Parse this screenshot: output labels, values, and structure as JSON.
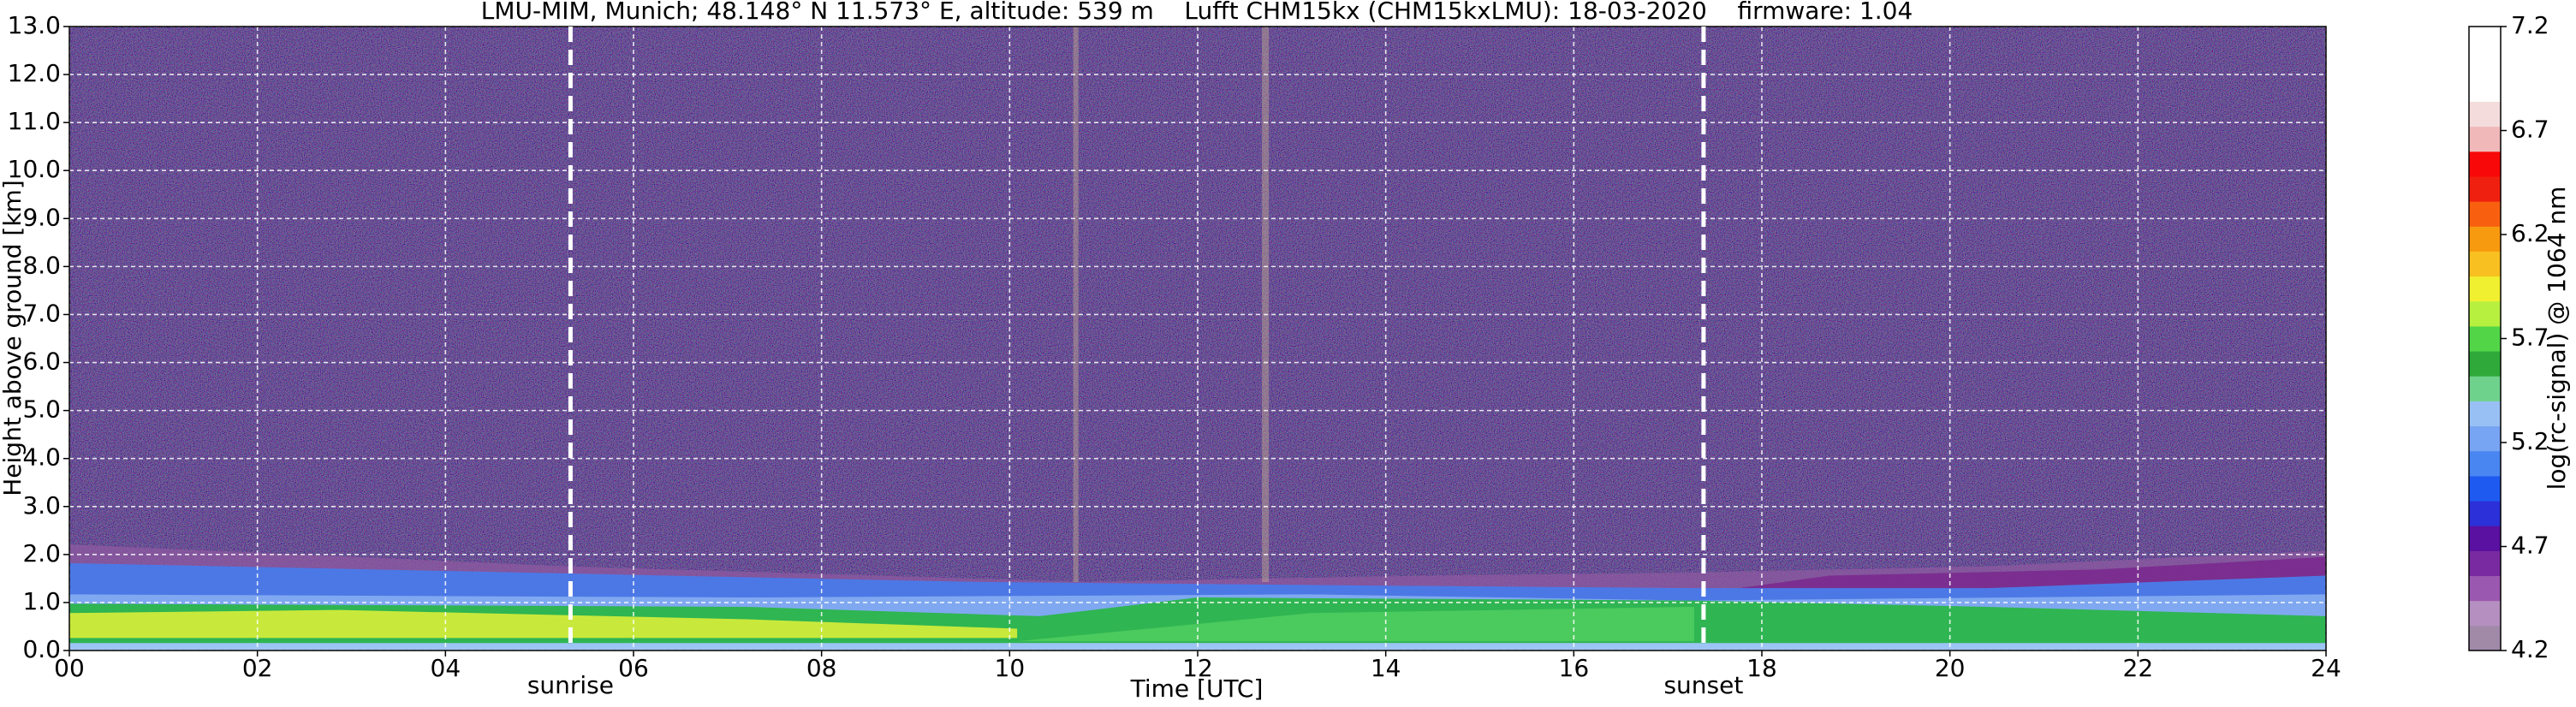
{
  "chart_data": {
    "type": "heatmap",
    "title": "LMU-MIM, Munich; 48.148° N 11.573° E, altitude: 539 m    Lufft CHM15kx (CHM15kxLMU): 18-03-2020    firmware: 1.04",
    "xlabel": "Time [UTC]",
    "ylabel": "Height above ground [km]",
    "xlim": [
      0,
      24
    ],
    "xticks": [
      {
        "value": 0,
        "label": "00"
      },
      {
        "value": 2,
        "label": "02"
      },
      {
        "value": 4,
        "label": "04"
      },
      {
        "value": 6,
        "label": "06"
      },
      {
        "value": 8,
        "label": "08"
      },
      10,
      12,
      14,
      16,
      18,
      20,
      22,
      24
    ],
    "ylim": [
      0,
      13
    ],
    "yticks": [
      {
        "value": 0,
        "label": "0.0"
      },
      {
        "value": 1,
        "label": "1.0"
      },
      {
        "value": 2,
        "label": "2.0"
      },
      {
        "value": 3,
        "label": "3.0"
      },
      {
        "value": 4,
        "label": "4.0"
      },
      {
        "value": 5,
        "label": "5.0"
      },
      {
        "value": 6,
        "label": "6.0"
      },
      {
        "value": 7,
        "label": "7.0"
      },
      {
        "value": 8,
        "label": "8.0"
      },
      {
        "value": 9,
        "label": "9.0"
      },
      {
        "value": 10,
        "label": "10.0"
      },
      {
        "value": 11,
        "label": "11.0"
      },
      {
        "value": 12,
        "label": "12.0"
      },
      {
        "value": 13,
        "label": "13.0"
      }
    ],
    "grid": true,
    "colorbar": {
      "label": "log(rc-signal) @ 1064 nm",
      "lim": [
        4.2,
        7.2
      ],
      "ticks": [
        4.2,
        4.7,
        5.2,
        5.7,
        6.2,
        6.7,
        7.2
      ]
    },
    "annotations": [
      {
        "text": "sunrise",
        "x": 5.33
      },
      {
        "text": "sunset",
        "x": 17.38
      }
    ]
  }
}
